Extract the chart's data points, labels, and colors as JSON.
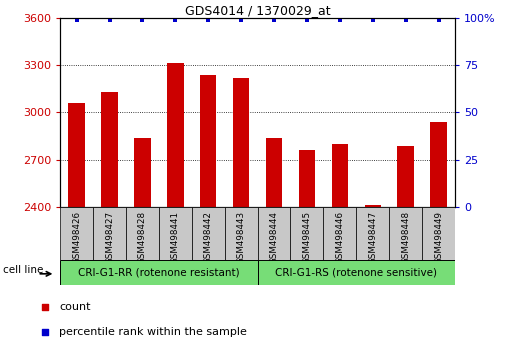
{
  "title": "GDS4014 / 1370029_at",
  "samples": [
    "GSM498426",
    "GSM498427",
    "GSM498428",
    "GSM498441",
    "GSM498442",
    "GSM498443",
    "GSM498444",
    "GSM498445",
    "GSM498446",
    "GSM498447",
    "GSM498448",
    "GSM498449"
  ],
  "counts": [
    3060,
    3130,
    2840,
    3310,
    3240,
    3220,
    2840,
    2760,
    2800,
    2415,
    2790,
    2940
  ],
  "percentile_ranks": [
    99,
    99,
    99,
    99,
    99,
    99,
    99,
    99,
    99,
    99,
    99,
    99
  ],
  "bar_color": "#cc0000",
  "dot_color": "#0000cc",
  "ylim_left": [
    2400,
    3600
  ],
  "ylim_right": [
    0,
    100
  ],
  "yticks_left": [
    2400,
    2700,
    3000,
    3300,
    3600
  ],
  "yticks_right": [
    0,
    25,
    50,
    75,
    100
  ],
  "group1_label": "CRI-G1-RR (rotenone resistant)",
  "group2_label": "CRI-G1-RS (rotenone sensitive)",
  "group1_count": 6,
  "group2_count": 6,
  "cell_line_label": "cell line",
  "legend_count_label": "count",
  "legend_pct_label": "percentile rank within the sample",
  "group_color": "#77dd77",
  "tick_bg_color": "#c8c8c8",
  "title_fontsize": 9,
  "axis_fontsize": 8,
  "axis_label_color_left": "#cc0000",
  "axis_label_color_right": "#0000cc",
  "bar_width": 0.5
}
